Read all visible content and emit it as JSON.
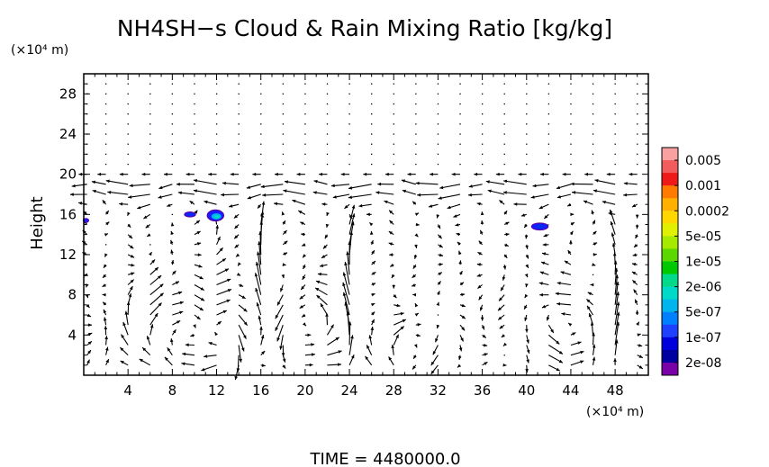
{
  "chart_data": {
    "type": "vector_field_with_filled_contour",
    "title": "NH4SH−s Cloud & Rain Mixing Ratio [kg/kg]",
    "y_unit": "(×10⁴ m)",
    "x_unit": "(×10⁴ m)",
    "ylabel": "Height",
    "xlabel": "",
    "time_label": "TIME  =  4480000.0",
    "xlim": [
      0,
      51
    ],
    "ylim": [
      0,
      30
    ],
    "x_ticks": [
      "4",
      "8",
      "12",
      "16",
      "20",
      "24",
      "28",
      "32",
      "36",
      "40",
      "44",
      "48"
    ],
    "y_ticks": [
      "4",
      "8",
      "12",
      "16",
      "20",
      "24",
      "28"
    ],
    "colorbar": {
      "labels": [
        "0.005",
        "0.001",
        "0.0002",
        "5e-05",
        "1e-05",
        "2e-06",
        "5e-07",
        "1e-07",
        "2e-08"
      ],
      "colors": [
        "#f9a0a0",
        "#f25c5c",
        "#ee1a1a",
        "#ff7a00",
        "#ffb000",
        "#ffd700",
        "#e0f000",
        "#a5ea00",
        "#5cd800",
        "#00c800",
        "#00d98a",
        "#00d8c8",
        "#00b4ee",
        "#0080ff",
        "#1e40ff",
        "#0000dc",
        "#0000a0",
        "#7a00a8"
      ]
    },
    "contour_blobs": [
      {
        "x": 9.6,
        "y": 16.0,
        "rx": 0.5,
        "ry": 0.25,
        "level": "1e-07"
      },
      {
        "x": 11.9,
        "y": 15.9,
        "rx": 0.75,
        "ry": 0.55,
        "level": "5e-07"
      },
      {
        "x": 41.2,
        "y": 14.8,
        "rx": 0.75,
        "ry": 0.35,
        "level": "1e-07"
      },
      {
        "x": 0.2,
        "y": 15.4,
        "rx": 0.25,
        "ry": 0.2,
        "level": "2e-08"
      }
    ],
    "vortices": [
      {
        "x": 9.5,
        "y": 4.0,
        "r": 5.0,
        "dir": -1
      },
      {
        "x": 20.5,
        "y": 4.5,
        "r": 4.0,
        "dir": 1
      },
      {
        "x": 29.0,
        "y": 3.0,
        "r": 3.0,
        "dir": -1
      },
      {
        "x": 43.0,
        "y": 5.0,
        "r": 4.0,
        "dir": 1
      }
    ],
    "wind_jet": {
      "y": 18.5,
      "halfwidth": 1.6,
      "u": -1.4
    },
    "updrafts": [
      {
        "x": 16.0,
        "amp": 2.0
      },
      {
        "x": 24.0,
        "amp": 1.6
      },
      {
        "x": 47.5,
        "amp": 1.8
      },
      {
        "x": 12.5,
        "amp": 1.4
      }
    ]
  }
}
